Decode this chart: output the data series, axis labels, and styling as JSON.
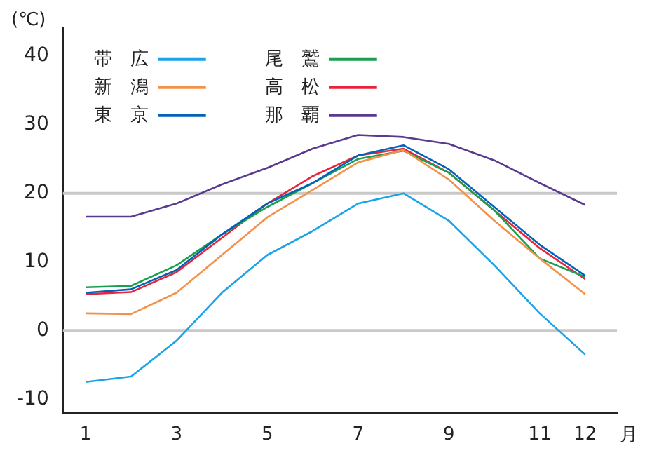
{
  "chart_data": {
    "type": "line",
    "ylabel": "(℃)",
    "xlabel": "月",
    "x": [
      1,
      2,
      3,
      4,
      5,
      6,
      7,
      8,
      9,
      10,
      11,
      12
    ],
    "series": [
      {
        "name": "帯　広",
        "color": "#1aa3e8",
        "values": [
          -7.5,
          -6.7,
          -1.5,
          5.5,
          11,
          14.5,
          18.5,
          20,
          16,
          9.5,
          2.5,
          -3.5
        ]
      },
      {
        "name": "新　潟",
        "color": "#f39149",
        "values": [
          2.5,
          2.4,
          5.5,
          11,
          16.5,
          20.5,
          24.5,
          26.3,
          22,
          16,
          10.5,
          5.3
        ]
      },
      {
        "name": "東　京",
        "color": "#0062b8",
        "values": [
          5.5,
          6,
          8.8,
          14,
          18.5,
          21.5,
          25.5,
          27,
          23.5,
          18,
          12.5,
          8
        ]
      },
      {
        "name": "尾　鷲",
        "color": "#1a9f4c",
        "values": [
          6.3,
          6.5,
          9.5,
          14,
          18,
          21.5,
          25,
          26.2,
          23,
          17.5,
          10.5,
          7.8
        ]
      },
      {
        "name": "高　松",
        "color": "#e8243c",
        "values": [
          5.3,
          5.6,
          8.5,
          13.5,
          18.5,
          22.5,
          25.5,
          26.5,
          23,
          17.5,
          12,
          7.5
        ]
      },
      {
        "name": "那　覇",
        "color": "#5a3a8e",
        "values": [
          16.6,
          16.6,
          18.5,
          21.3,
          23.7,
          26.5,
          28.5,
          28.2,
          27.2,
          24.8,
          21.5,
          18.3
        ]
      }
    ],
    "xlim": [
      0.5,
      12.7
    ],
    "xticks": [
      1,
      3,
      5,
      7,
      9,
      11,
      12
    ],
    "ylim": [
      -12,
      44
    ],
    "yticks": [
      -10,
      0,
      10,
      20,
      30,
      40
    ],
    "ref_lines": [
      {
        "axis": "y",
        "value": 0,
        "color": "#c8c8c8"
      },
      {
        "axis": "y",
        "value": 20,
        "color": "#c8c8c8"
      }
    ],
    "grid": false,
    "legend": "top left",
    "marker": "none",
    "line_style": "solid"
  }
}
